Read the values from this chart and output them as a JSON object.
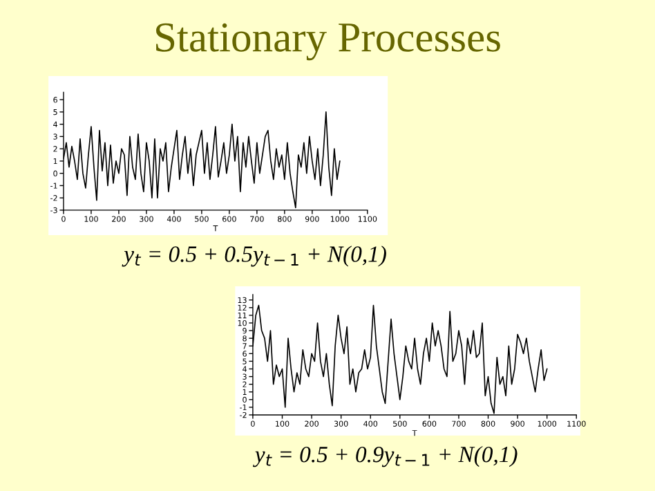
{
  "chart_data": [
    {
      "type": "line",
      "title": "Stationary Processes",
      "xlabel": "T",
      "annotations": [
        "y$_{t}$ = 0.5 + 0.5y$_{t−1}$ + N(0,1)"
      ],
      "x": [
        0,
        10,
        20,
        30,
        40,
        50,
        60,
        70,
        80,
        90,
        100,
        110,
        120,
        130,
        140,
        150,
        160,
        170,
        180,
        190,
        200,
        210,
        220,
        230,
        240,
        250,
        260,
        270,
        280,
        290,
        300,
        310,
        320,
        330,
        340,
        350,
        360,
        370,
        380,
        390,
        400,
        410,
        420,
        430,
        440,
        450,
        460,
        470,
        480,
        490,
        500,
        510,
        520,
        530,
        540,
        550,
        560,
        570,
        580,
        590,
        600,
        610,
        620,
        630,
        640,
        650,
        660,
        670,
        680,
        690,
        700,
        710,
        720,
        730,
        740,
        750,
        760,
        770,
        780,
        790,
        800,
        810,
        820,
        830,
        840,
        850,
        860,
        870,
        880,
        890,
        900,
        910,
        920,
        930,
        940,
        950,
        960,
        970,
        980,
        990,
        1000
      ],
      "series": [
        {
          "color": "#000000",
          "values": [
            1.2,
            2.5,
            0.5,
            2.2,
            1.0,
            -0.5,
            2.8,
            0.0,
            -1.2,
            1.5,
            3.8,
            0.5,
            -2.2,
            3.5,
            0.2,
            2.5,
            -1.0,
            2.3,
            -0.8,
            1.0,
            0.0,
            2.0,
            1.5,
            -1.8,
            3.0,
            0.5,
            -0.5,
            3.2,
            0.0,
            -1.5,
            2.5,
            1.0,
            -2.0,
            2.8,
            -2.0,
            2.0,
            1.0,
            2.5,
            -1.5,
            0.5,
            2.0,
            3.5,
            -0.5,
            1.5,
            3.0,
            0.0,
            2.0,
            -1.0,
            1.5,
            2.5,
            3.5,
            0.0,
            2.5,
            -0.5,
            1.5,
            3.8,
            -0.3,
            1.0,
            2.5,
            0.0,
            1.5,
            4.0,
            1.0,
            3.0,
            -1.5,
            2.5,
            0.5,
            3.0,
            1.0,
            -0.8,
            2.5,
            0.0,
            1.5,
            3.0,
            3.5,
            1.0,
            -0.5,
            2.0,
            0.5,
            1.5,
            -0.5,
            2.5,
            0.0,
            -1.5,
            -2.8,
            1.5,
            0.5,
            2.5,
            0.0,
            3.0,
            1.0,
            -0.5,
            2.0,
            -1.0,
            1.5,
            5.0,
            0.5,
            -1.8,
            2.0,
            -0.5,
            1.0
          ]
        }
      ],
      "xlim": [
        0,
        1100
      ],
      "xticks": [
        0,
        100,
        200,
        300,
        400,
        500,
        600,
        700,
        800,
        900,
        1000,
        1100
      ],
      "ylim": [
        -3,
        6.6
      ],
      "yticks": [
        -3,
        -2,
        -1,
        0,
        1,
        2,
        3,
        4,
        5,
        6
      ],
      "grid": false,
      "legend": false,
      "marker": "none",
      "line_style": "solid"
    },
    {
      "type": "line",
      "xlabel": "T",
      "annotations": [
        "y$_{t}$ = 0.5 + 0.9y$_{t−1}$ + N(0,1)"
      ],
      "x": [
        0,
        10,
        20,
        30,
        40,
        50,
        60,
        70,
        80,
        90,
        100,
        110,
        120,
        130,
        140,
        150,
        160,
        170,
        180,
        190,
        200,
        210,
        220,
        230,
        240,
        250,
        260,
        270,
        280,
        290,
        300,
        310,
        320,
        330,
        340,
        350,
        360,
        370,
        380,
        390,
        400,
        410,
        420,
        430,
        440,
        450,
        460,
        470,
        480,
        490,
        500,
        510,
        520,
        530,
        540,
        550,
        560,
        570,
        580,
        590,
        600,
        610,
        620,
        630,
        640,
        650,
        660,
        670,
        680,
        690,
        700,
        710,
        720,
        730,
        740,
        750,
        760,
        770,
        780,
        790,
        800,
        810,
        820,
        830,
        840,
        850,
        860,
        870,
        880,
        890,
        900,
        910,
        920,
        930,
        940,
        950,
        960,
        970,
        980,
        990,
        1000
      ],
      "series": [
        {
          "color": "#000000",
          "values": [
            7,
            11,
            12.3,
            9,
            8,
            5,
            9,
            2,
            4.5,
            3,
            4,
            -1,
            8,
            4,
            1,
            3.5,
            2,
            6.5,
            4,
            3,
            6,
            5,
            10,
            5,
            3,
            6,
            2,
            -0.8,
            7,
            11,
            8,
            6,
            9.5,
            2,
            4,
            1,
            3.5,
            4,
            6.5,
            4,
            5.5,
            12.3,
            7,
            4,
            1,
            -0.5,
            5,
            10.5,
            6,
            3,
            0,
            3,
            7,
            5,
            4,
            8,
            4,
            2,
            6,
            8,
            5,
            10,
            7,
            9,
            7,
            4,
            3,
            11.5,
            5,
            6,
            9,
            7,
            2,
            8,
            6,
            9,
            5.5,
            6,
            10,
            0.5,
            3,
            -0.5,
            -1.8,
            5.5,
            2,
            3,
            0.5,
            7,
            2,
            4,
            8.5,
            7.5,
            6,
            8,
            5,
            3,
            1,
            4,
            6.5,
            2.5,
            4
          ]
        }
      ],
      "xlim": [
        0,
        1100
      ],
      "xticks": [
        0,
        100,
        200,
        300,
        400,
        500,
        600,
        700,
        800,
        900,
        1000,
        1100
      ],
      "ylim": [
        -2,
        13.7
      ],
      "yticks": [
        -2,
        -1,
        0,
        1,
        2,
        3,
        4,
        5,
        6,
        7,
        8,
        9,
        10,
        11,
        12,
        13
      ],
      "grid": false,
      "legend": false,
      "marker": "none",
      "line_style": "solid"
    }
  ]
}
